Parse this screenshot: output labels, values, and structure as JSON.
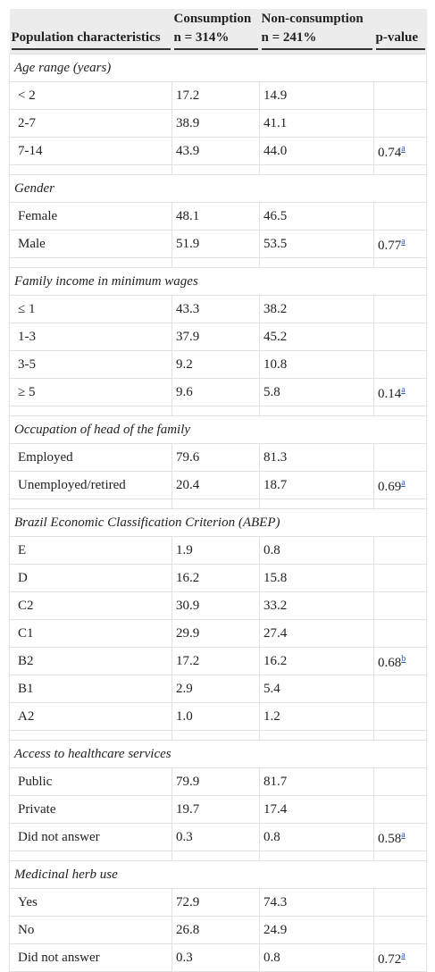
{
  "header": {
    "row1": [
      "Consumption",
      "Non-consumption"
    ],
    "row2": [
      "Population characteristics",
      "n = 314%",
      "n = 241%",
      "p-value"
    ]
  },
  "sections": [
    {
      "title": "Age range (years)",
      "rows": [
        {
          "cells": [
            "< 2",
            "17.2",
            "14.9"
          ]
        },
        {
          "cells": [
            "2-7",
            "38.9",
            "41.1"
          ]
        },
        {
          "cells": [
            "7-14",
            "43.9",
            "44.0"
          ],
          "p_value": "0.74",
          "note": "a"
        }
      ]
    },
    {
      "title": "Gender",
      "rows": [
        {
          "cells": [
            "Female",
            "48.1",
            "46.5"
          ]
        },
        {
          "cells": [
            "Male",
            "51.9",
            "53.5"
          ],
          "p_value": "0.77",
          "note": "a"
        }
      ]
    },
    {
      "title": "Family income in minimum wages",
      "rows": [
        {
          "cells": [
            "≤ 1",
            "43.3",
            "38.2"
          ]
        },
        {
          "cells": [
            "1-3",
            "37.9",
            "45.2"
          ]
        },
        {
          "cells": [
            "3-5",
            "9.2",
            "10.8"
          ]
        },
        {
          "cells": [
            "≥ 5",
            "9.6",
            "5.8"
          ],
          "p_value": "0.14",
          "note": "a"
        }
      ]
    },
    {
      "title": "Occupation of head of the family",
      "rows": [
        {
          "cells": [
            "Employed",
            "79.6",
            "81.3"
          ]
        },
        {
          "cells": [
            "Unemployed/retired",
            "20.4",
            "18.7"
          ],
          "p_value": "0.69",
          "note": "a"
        }
      ]
    },
    {
      "title": "Brazil Economic Classification Criterion (ABEP)",
      "rows": [
        {
          "cells": [
            "E",
            "1.9",
            "0.8"
          ]
        },
        {
          "cells": [
            "D",
            "16.2",
            "15.8"
          ]
        },
        {
          "cells": [
            "C2",
            "30.9",
            "33.2"
          ]
        },
        {
          "cells": [
            "C1",
            "29.9",
            "27.4"
          ]
        },
        {
          "cells": [
            "B2",
            "17.2",
            "16.2"
          ],
          "p_value": "0.68",
          "note": "b"
        },
        {
          "cells": [
            "B1",
            "2.9",
            "5.4"
          ]
        },
        {
          "cells": [
            "A2",
            "1.0",
            "1.2"
          ]
        }
      ]
    },
    {
      "title": "Access to healthcare services",
      "rows": [
        {
          "cells": [
            "Public",
            "79.9",
            "81.7"
          ]
        },
        {
          "cells": [
            "Private",
            "19.7",
            "17.4"
          ]
        },
        {
          "cells": [
            "Did not answer",
            "0.3",
            "0.8"
          ],
          "p_value": "0.58",
          "note": "a"
        }
      ]
    },
    {
      "title": "Medicinal herb use",
      "rows": [
        {
          "cells": [
            "Yes",
            "72.9",
            "74.3"
          ]
        },
        {
          "cells": [
            "No",
            "26.8",
            "24.9"
          ]
        },
        {
          "cells": [
            "Did not answer",
            "0.3",
            "0.8"
          ],
          "p_value": "0.72",
          "note": "a"
        }
      ]
    }
  ]
}
